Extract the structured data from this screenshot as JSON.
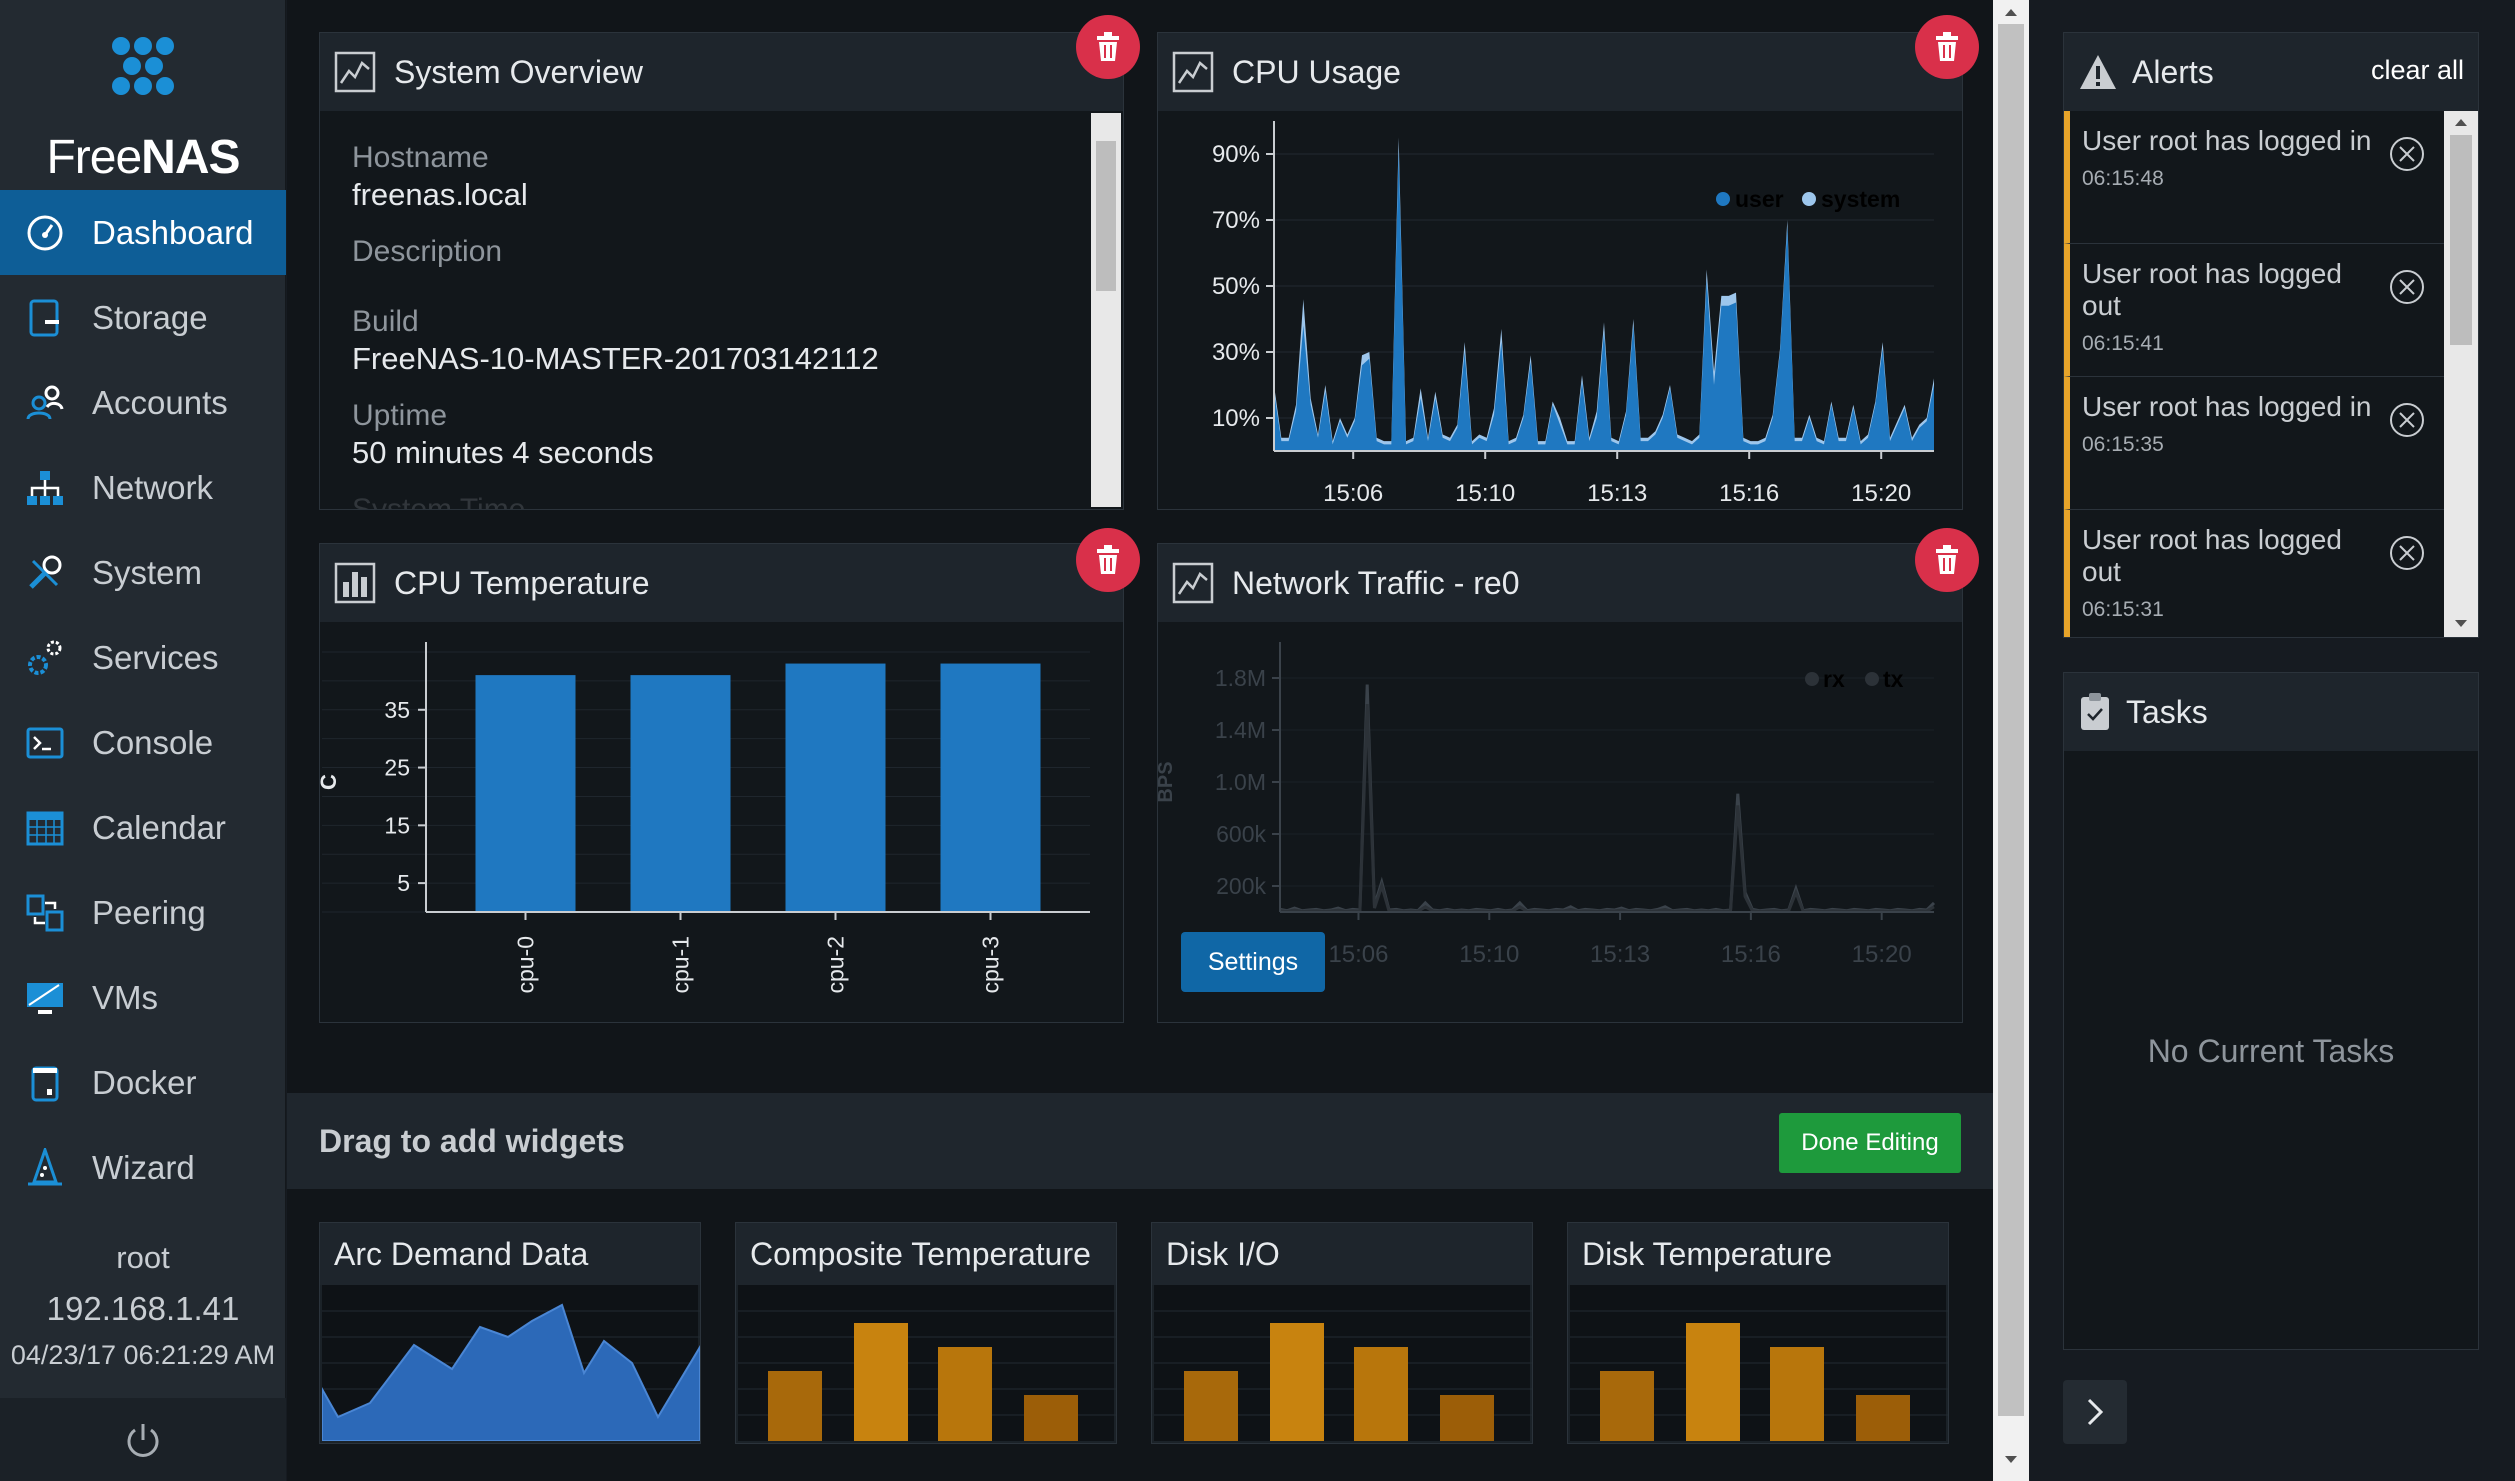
{
  "sidebar": {
    "logo_light": "Free",
    "logo_bold": "NAS",
    "items": [
      {
        "label": "Dashboard",
        "icon": "speedometer-icon"
      },
      {
        "label": "Storage",
        "icon": "storage-icon"
      },
      {
        "label": "Accounts",
        "icon": "accounts-icon"
      },
      {
        "label": "Network",
        "icon": "network-icon"
      },
      {
        "label": "System",
        "icon": "wrench-icon"
      },
      {
        "label": "Services",
        "icon": "gears-icon"
      },
      {
        "label": "Console",
        "icon": "terminal-icon"
      },
      {
        "label": "Calendar",
        "icon": "calendar-icon"
      },
      {
        "label": "Peering",
        "icon": "peering-icon"
      },
      {
        "label": "VMs",
        "icon": "monitor-icon"
      },
      {
        "label": "Docker",
        "icon": "docker-icon"
      },
      {
        "label": "Wizard",
        "icon": "wizard-hat-icon"
      }
    ],
    "user": "root",
    "ip": "192.168.1.41",
    "datetime": "04/23/17  06:21:29 AM"
  },
  "widgets": {
    "overview": {
      "title": "System Overview",
      "fields": [
        {
          "label": "Hostname",
          "value": "freenas.local"
        },
        {
          "label": "Description",
          "value": ""
        },
        {
          "label": "Build",
          "value": "FreeNAS-10-MASTER-201703142112"
        },
        {
          "label": "Uptime",
          "value": "50 minutes 4 seconds"
        },
        {
          "label": "System Time",
          "value": ""
        }
      ]
    },
    "cpu_usage": {
      "title": "CPU Usage",
      "legend_user": "user",
      "legend_system": "system"
    },
    "cpu_temp": {
      "title": "CPU Temperature"
    },
    "network": {
      "title": "Network Traffic - re0",
      "legend_rx": "rx",
      "legend_tx": "tx",
      "settings_label": "Settings"
    }
  },
  "chart_data": [
    {
      "type": "area",
      "title": "CPU Usage",
      "x_ticks": [
        "15:06",
        "15:10",
        "15:13",
        "15:16",
        "15:20"
      ],
      "y_ticks": [
        "10%",
        "30%",
        "50%",
        "70%",
        "90%"
      ],
      "ylim": [
        0,
        100
      ],
      "grid": true,
      "legend_position": "top-right",
      "series": [
        {
          "name": "user",
          "color": "#1f78c1",
          "values": [
            18,
            3,
            3,
            12,
            38,
            14,
            4,
            18,
            2,
            9,
            4,
            9,
            26,
            28,
            3,
            2,
            2,
            91,
            2,
            3,
            16,
            3,
            16,
            4,
            3,
            7,
            30,
            2,
            4,
            3,
            11,
            33,
            2,
            3,
            10,
            27,
            2,
            2,
            14,
            8,
            2,
            2,
            21,
            3,
            10,
            36,
            3,
            2,
            11,
            38,
            3,
            3,
            5,
            10,
            19,
            4,
            3,
            2,
            4,
            52,
            20,
            44,
            44,
            45,
            3,
            2,
            2,
            3,
            10,
            30,
            68,
            3,
            3,
            10,
            3,
            2,
            14,
            3,
            3,
            13,
            2,
            4,
            14,
            31,
            3,
            8,
            13,
            3,
            7,
            9,
            20
          ]
        },
        {
          "name": "system",
          "color": "#9dc6ec",
          "values": [
            2,
            1,
            1,
            2,
            8,
            2,
            1,
            2,
            1,
            1,
            1,
            1,
            3,
            2,
            1,
            1,
            1,
            4,
            1,
            1,
            3,
            1,
            2,
            1,
            1,
            1,
            3,
            1,
            1,
            1,
            2,
            4,
            1,
            1,
            1,
            2,
            1,
            1,
            1,
            2,
            1,
            1,
            2,
            1,
            2,
            3,
            1,
            1,
            1,
            2,
            1,
            1,
            1,
            1,
            1,
            1,
            1,
            1,
            1,
            3,
            4,
            3,
            3,
            3,
            1,
            1,
            1,
            1,
            1,
            1,
            2,
            1,
            1,
            1,
            1,
            1,
            1,
            1,
            1,
            1,
            1,
            1,
            1,
            2,
            1,
            1,
            1,
            1,
            1,
            1,
            2
          ]
        }
      ]
    },
    {
      "type": "bar",
      "title": "CPU Temperature",
      "ylabel": "C",
      "categories": [
        "cpu-0",
        "cpu-1",
        "cpu-2",
        "cpu-3"
      ],
      "values": [
        41,
        41,
        43,
        43
      ],
      "y_ticks": [
        "5",
        "15",
        "25",
        "35"
      ],
      "ylim": [
        0,
        45
      ],
      "color": "#1f78c1",
      "grid": true
    },
    {
      "type": "line",
      "title": "Network Traffic - re0",
      "ylabel": "BPS",
      "x_ticks": [
        "15:06",
        "15:10",
        "15:13",
        "15:16",
        "15:20"
      ],
      "y_ticks": [
        "200k",
        "600k",
        "1.0M",
        "1.4M",
        "1.8M"
      ],
      "ylim": [
        0,
        2000000
      ],
      "series": [
        {
          "name": "rx",
          "color": "#3a424a",
          "values": [
            20000,
            10000,
            30000,
            10000,
            15000,
            20000,
            10000,
            15000,
            30000,
            10000,
            20000,
            15000,
            1750000,
            50000,
            230000,
            15000,
            20000,
            10000,
            15000,
            10000,
            70000,
            15000,
            10000,
            20000,
            10000,
            15000,
            10000,
            20000,
            15000,
            10000,
            20000,
            10000,
            15000,
            70000,
            10000,
            20000,
            15000,
            10000,
            20000,
            15000,
            40000,
            10000,
            20000,
            15000,
            10000,
            20000,
            15000,
            30000,
            10000,
            20000,
            15000,
            10000,
            20000,
            40000,
            10000,
            15000,
            20000,
            10000,
            15000,
            10000,
            20000,
            10000,
            15000,
            910000,
            150000,
            20000,
            10000,
            15000,
            20000,
            10000,
            15000,
            180000,
            10000,
            20000,
            15000,
            10000,
            20000,
            15000,
            10000,
            20000,
            15000,
            10000,
            20000,
            15000,
            10000,
            20000,
            15000,
            10000,
            20000,
            15000,
            70000
          ]
        },
        {
          "name": "tx",
          "color": "#2c3238",
          "values": [
            10000,
            5000,
            15000,
            5000,
            8000,
            10000,
            5000,
            8000,
            15000,
            5000,
            10000,
            8000,
            1600000,
            30000,
            200000,
            8000,
            10000,
            5000,
            8000,
            5000,
            40000,
            8000,
            5000,
            10000,
            5000,
            8000,
            5000,
            10000,
            8000,
            5000,
            10000,
            5000,
            8000,
            40000,
            5000,
            10000,
            8000,
            5000,
            10000,
            8000,
            20000,
            5000,
            10000,
            8000,
            5000,
            10000,
            8000,
            15000,
            5000,
            10000,
            8000,
            5000,
            10000,
            20000,
            5000,
            8000,
            10000,
            5000,
            8000,
            5000,
            10000,
            5000,
            8000,
            820000,
            120000,
            10000,
            5000,
            8000,
            10000,
            5000,
            8000,
            150000,
            5000,
            10000,
            8000,
            5000,
            10000,
            8000,
            5000,
            10000,
            8000,
            5000,
            10000,
            8000,
            5000,
            10000,
            8000,
            5000,
            10000,
            8000,
            40000
          ]
        }
      ]
    }
  ],
  "palette": {
    "title": "Drag to add widgets",
    "done_label": "Done Editing",
    "items": [
      {
        "label": "Arc Demand Data"
      },
      {
        "label": "Composite Temperature"
      },
      {
        "label": "Disk I/O"
      },
      {
        "label": "Disk Temperature"
      }
    ]
  },
  "alerts": {
    "title": "Alerts",
    "clear_label": "clear all",
    "items": [
      {
        "message": "User root has logged in",
        "time": "06:15:48"
      },
      {
        "message": "User root has logged out",
        "time": "06:15:41"
      },
      {
        "message": "User root has logged in",
        "time": "06:15:35"
      },
      {
        "message": "User root has logged out",
        "time": "06:15:31"
      }
    ]
  },
  "tasks": {
    "title": "Tasks",
    "empty": "No Current Tasks"
  }
}
